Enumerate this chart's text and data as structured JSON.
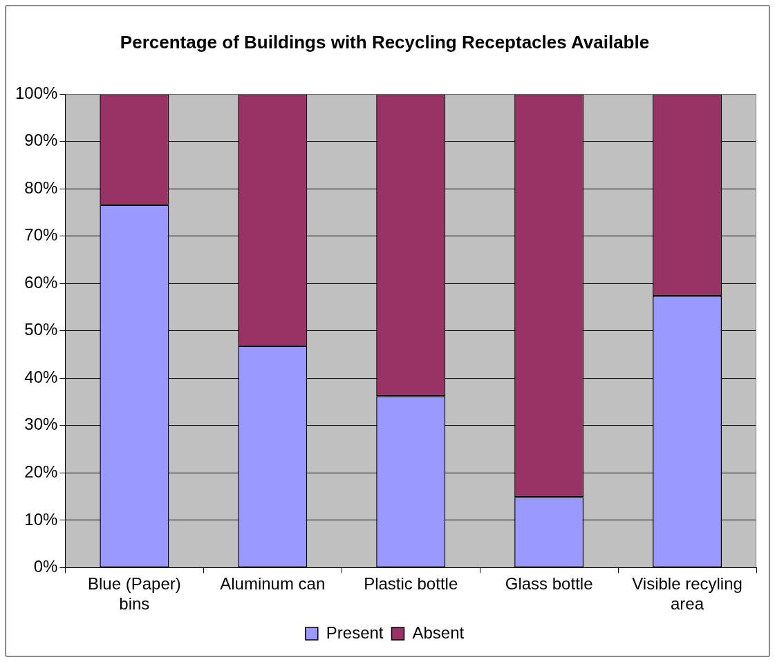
{
  "chart_data": {
    "type": "bar",
    "title": "Percentage of Buildings with Recycling Receptacles Available",
    "categories": [
      "Blue (Paper) bins",
      "Aluminum can",
      "Plastic bottle",
      "Glass bottle",
      "Visible recyling area"
    ],
    "series": [
      {
        "name": "Present",
        "color": "#9999ff",
        "values": [
          76.6,
          46.8,
          36.2,
          14.9,
          57.4
        ]
      },
      {
        "name": "Absent",
        "color": "#993366",
        "values": [
          23.4,
          53.2,
          63.8,
          85.1,
          42.6
        ]
      }
    ],
    "stacked": true,
    "ylim": [
      0,
      100
    ],
    "yticks": [
      {
        "value": 0,
        "label": "0%"
      },
      {
        "value": 10,
        "label": "10%"
      },
      {
        "value": 20,
        "label": "20%"
      },
      {
        "value": 30,
        "label": "30%"
      },
      {
        "value": 40,
        "label": "40%"
      },
      {
        "value": 50,
        "label": "50%"
      },
      {
        "value": 60,
        "label": "60%"
      },
      {
        "value": 70,
        "label": "70%"
      },
      {
        "value": 80,
        "label": "80%"
      },
      {
        "value": 90,
        "label": "90%"
      },
      {
        "value": 100,
        "label": "100%"
      }
    ],
    "grid": "y",
    "legend": "bottom"
  }
}
